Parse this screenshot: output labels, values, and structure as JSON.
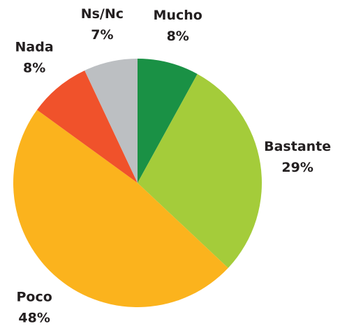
{
  "chart_data": {
    "type": "pie",
    "categories": [
      "Mucho",
      "Bastante",
      "Poco",
      "Nada",
      "Ns/Nc"
    ],
    "values": [
      8,
      29,
      48,
      8,
      7
    ],
    "value_labels": [
      "8%",
      "29%",
      "48%",
      "8%",
      "7%"
    ],
    "colors": [
      "#1a9145",
      "#a4cc3a",
      "#fbb31d",
      "#f0522b",
      "#bcbfc2"
    ]
  }
}
